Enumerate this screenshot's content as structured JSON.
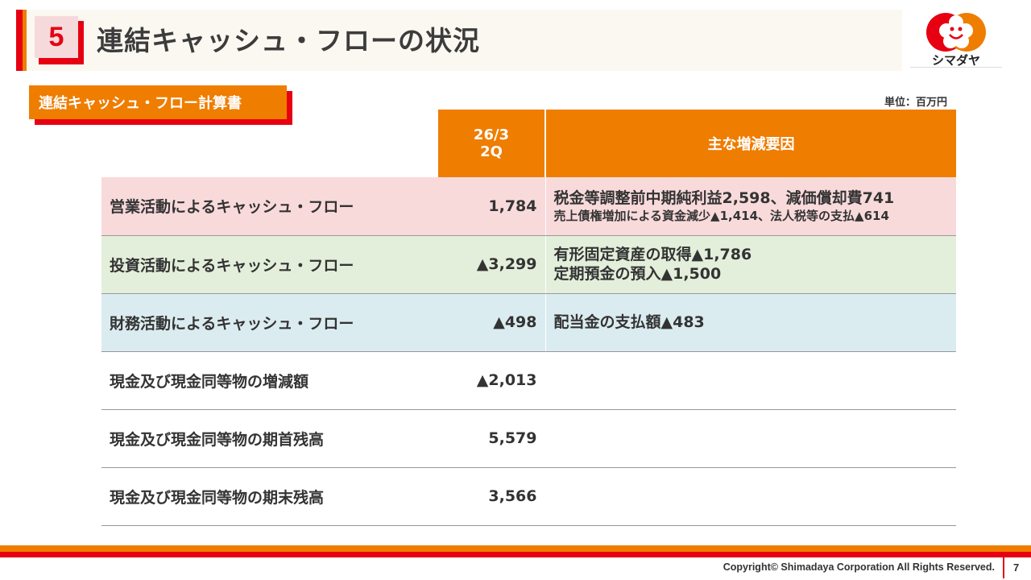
{
  "header": {
    "section_number": "5",
    "title": "連結キャッシュ・フローの状況",
    "logo_text": "シマダヤ"
  },
  "subtitle": "連結キャッシュ・フロー計算書",
  "unit": "単位：百万円",
  "table": {
    "col_period_line1": "26/3",
    "col_period_line2": "2Q",
    "col_factors": "主な増減要因",
    "rows": [
      {
        "label": "営業活動によるキャッシュ・フロー",
        "value": "1,784",
        "note1": "税金等調整前中期純利益2,598、減価償却費741",
        "note2": "売上債権増加による資金減少▲1,414、法人税等の支払▲614"
      },
      {
        "label": "投資活動によるキャッシュ・フロー",
        "value": "▲3,299",
        "note1": "有形固定資産の取得▲1,786",
        "note2": "定期預金の預入▲1,500"
      },
      {
        "label": "財務活動によるキャッシュ・フロー",
        "value": "▲498",
        "note1": "配当金の支払額▲483"
      },
      {
        "label": "現金及び現金同等物の増減額",
        "value": "▲2,013"
      },
      {
        "label": "現金及び現金同等物の期首残高",
        "value": "5,579"
      },
      {
        "label": "現金及び現金同等物の期末残高",
        "value": "3,566"
      }
    ]
  },
  "footer": {
    "copyright": "Copyright© Shimadaya Corporation All Rights Reserved.",
    "page": "7"
  },
  "colors": {
    "orange": "#ef7d00",
    "red": "#e60012",
    "operating": "#f9dadb",
    "investing": "#e3efdb",
    "financing": "#dbecf1"
  }
}
